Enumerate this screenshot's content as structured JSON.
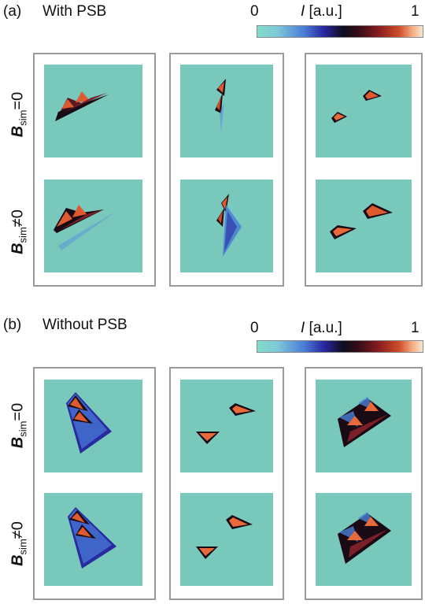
{
  "panel_a": {
    "label": "(a)",
    "title": "With PSB",
    "colorbar": {
      "min_label": "0",
      "max_label": "1",
      "title_var": "I",
      "title_unit": " [a.u.]"
    },
    "row_labels": [
      {
        "main": "B",
        "sub": "sim",
        "rel": "=0"
      },
      {
        "main": "B",
        "sub": "sim",
        "rel": "≠0"
      }
    ]
  },
  "panel_b": {
    "label": "(b)",
    "title": "Without PSB",
    "colorbar": {
      "min_label": "0",
      "max_label": "1",
      "title_var": "I",
      "title_unit": " [a.u.]"
    },
    "row_labels": [
      {
        "main": "B",
        "sub": "sim",
        "rel": "=0"
      },
      {
        "main": "B",
        "sub": "sim",
        "rel": "≠0"
      }
    ]
  },
  "colors": {
    "background_teal": "#78c8bc",
    "frame_gray": "#9a9a9a",
    "colormap": [
      "#7fdcc8",
      "#4a7fd8",
      "#0c0c20",
      "#8a1f22",
      "#d0502a",
      "#f8e6d6"
    ]
  }
}
